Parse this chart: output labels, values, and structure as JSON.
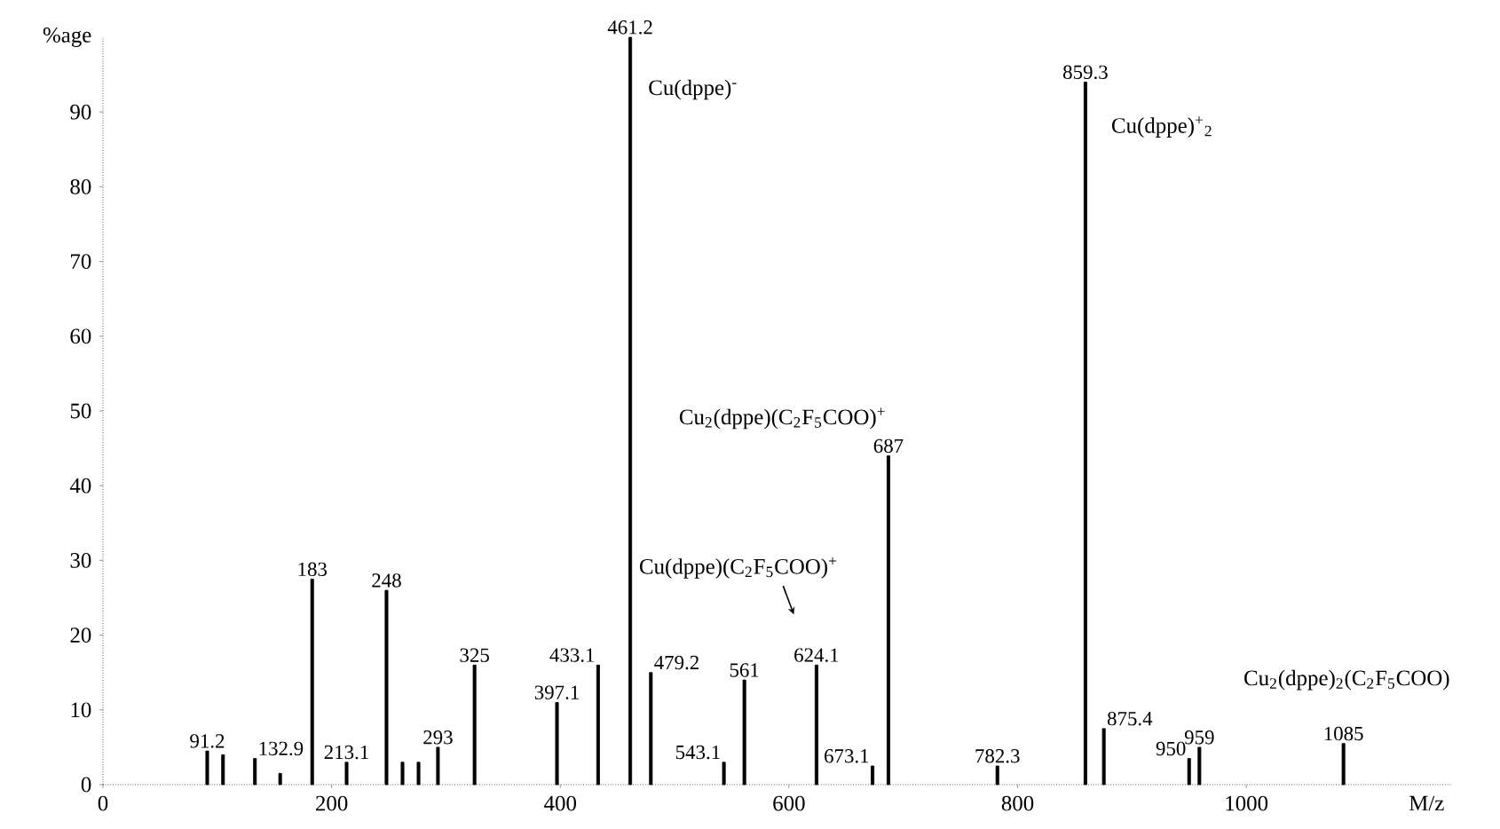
{
  "chart_data": {
    "type": "bar",
    "xlabel": "M/z",
    "ylabel": "%age",
    "x": [
      91.2,
      105,
      132.9,
      155,
      183,
      213.1,
      248,
      262,
      276,
      293,
      325,
      397.1,
      433.1,
      461.2,
      479.2,
      543.1,
      561,
      624.1,
      673.1,
      687,
      782.3,
      859.3,
      875.4,
      950,
      959,
      1085
    ],
    "values": [
      4.5,
      4,
      3.5,
      1.5,
      27.5,
      3,
      26,
      3,
      3,
      5,
      16,
      11,
      16,
      100,
      15,
      3,
      14,
      16,
      2.5,
      44,
      2.5,
      94,
      7.5,
      3.5,
      5,
      5.5
    ],
    "color": "#000000",
    "annotations": [
      "Cu(dppe)$^{-}$",
      "Cu(dppe)$^{+}$$_{2}$",
      "Cu$_{2}$(dppe)(C$_{2}$F$_{5}$COO)$^{+}$",
      "Cu(dppe)(C$_{2}$F$_{5}$COO)$^{+}$",
      "Cu$_{2}$(dppe)$_{2}$(C$_{2}$F$_{5}$COO)",
      {
        "text": "91.2",
        "x": 91.2,
        "y": 4.5
      },
      {
        "text": "132.9",
        "x": 132.9,
        "y": 3.5
      },
      {
        "text": "183",
        "x": 183,
        "y": 27.5
      },
      {
        "text": "213.1",
        "x": 213.1,
        "y": 3
      },
      {
        "text": "248",
        "x": 248,
        "y": 26
      },
      {
        "text": "293",
        "x": 293,
        "y": 5
      },
      {
        "text": "325",
        "x": 325,
        "y": 16
      },
      {
        "text": "397.1",
        "x": 397.1,
        "y": 11
      },
      {
        "text": "433.1",
        "x": 433.1,
        "y": 16
      },
      {
        "text": "461.2",
        "x": 461.2,
        "y": 100
      },
      {
        "text": "479.2",
        "x": 479.2,
        "y": 15
      },
      {
        "text": "543.1",
        "x": 543.1,
        "y": 3
      },
      {
        "text": "561",
        "x": 561,
        "y": 14
      },
      {
        "text": "624.1",
        "x": 624.1,
        "y": 16
      },
      {
        "text": "673.1",
        "x": 673.1,
        "y": 2.5
      },
      {
        "text": "687",
        "x": 687,
        "y": 44
      },
      {
        "text": "782.3",
        "x": 782.3,
        "y": 2.5
      },
      {
        "text": "859.3",
        "x": 859.3,
        "y": 94
      },
      {
        "text": "875.4",
        "x": 875.4,
        "y": 7.5
      },
      {
        "text": "950",
        "x": 950,
        "y": 3.5
      },
      {
        "text": "959",
        "x": 959,
        "y": 5
      },
      {
        "text": "1085",
        "x": 1085,
        "y": 5.5
      }
    ],
    "xlim": [
      0,
      1180
    ],
    "ylim": [
      0,
      100
    ],
    "xticks": [
      0,
      200,
      400,
      600,
      800,
      1000
    ],
    "yticks": [
      0,
      10,
      20,
      30,
      40,
      50,
      60,
      70,
      80,
      90
    ]
  }
}
